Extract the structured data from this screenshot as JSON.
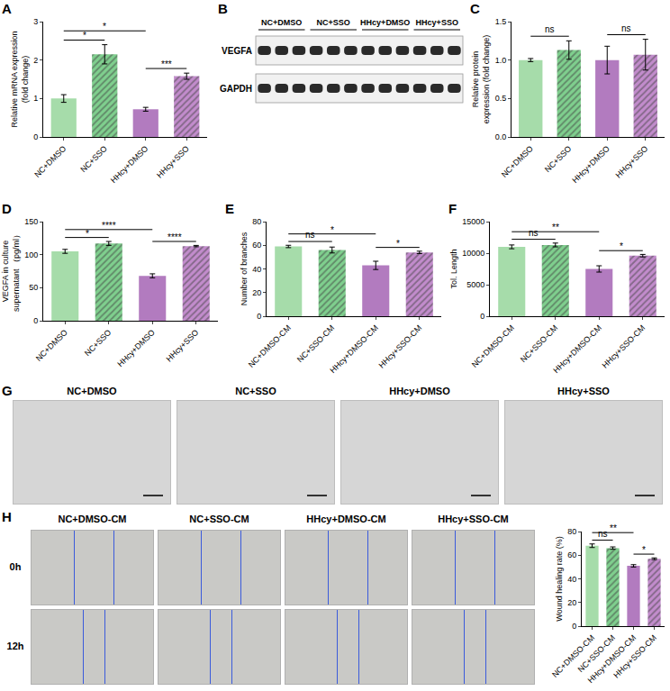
{
  "chart_data": [
    {
      "panel": "A",
      "type": "bar",
      "ylabel": "Relative mRNA expression (fold change)",
      "categories": [
        "NC+DMSO",
        "NC+SSO",
        "HHcy+DMSO",
        "HHcy+SSO"
      ],
      "values": [
        1.0,
        2.15,
        0.72,
        1.58
      ],
      "errors": [
        0.1,
        0.25,
        0.05,
        0.08
      ],
      "colors": [
        "#a6dcaa",
        "#7fcf8e",
        "#b27bbf",
        "#c28ccc"
      ],
      "ylim": [
        0,
        3
      ],
      "yticks": [
        0,
        1,
        2,
        3
      ],
      "comparisons": [
        {
          "from": 0,
          "to": 1,
          "label": "*"
        },
        {
          "from": 0,
          "to": 2,
          "label": "*"
        },
        {
          "from": 2,
          "to": 3,
          "label": "***"
        }
      ]
    },
    {
      "panel": "C",
      "type": "bar",
      "ylabel": "Relative protein expression (fold change)",
      "categories": [
        "NC+DMSO",
        "NC+SSO",
        "HHcy+DMSO",
        "HHcy+SSO"
      ],
      "values": [
        1.0,
        1.13,
        1.0,
        1.07
      ],
      "errors": [
        0.02,
        0.12,
        0.18,
        0.2
      ],
      "colors": [
        "#a6dcaa",
        "#7fcf8e",
        "#b27bbf",
        "#c28ccc"
      ],
      "ylim": [
        0,
        1.5
      ],
      "yticks": [
        {
          "value": 0,
          "label": "0.0"
        },
        0.5,
        {
          "value": 1,
          "label": "1.0"
        },
        1.5
      ],
      "comparisons": [
        {
          "from": 0,
          "to": 1,
          "label": "ns"
        },
        {
          "from": 2,
          "to": 3,
          "label": "ns"
        }
      ]
    },
    {
      "panel": "D",
      "type": "bar",
      "ylabel": "VEGFA in culture supernatant （pg/ml）",
      "categories": [
        "NC+DMSO",
        "NC+SSO",
        "HHcy+DMSO",
        "HHcy+SSO"
      ],
      "values": [
        105,
        117,
        68,
        113
      ],
      "errors": [
        3,
        3,
        3,
        1
      ],
      "colors": [
        "#a6dcaa",
        "#7fcf8e",
        "#b27bbf",
        "#c28ccc"
      ],
      "ylim": [
        0,
        150
      ],
      "yticks": [
        0,
        50,
        100,
        150
      ],
      "comparisons": [
        {
          "from": 0,
          "to": 1,
          "label": "*"
        },
        {
          "from": 0,
          "to": 2,
          "label": "****"
        },
        {
          "from": 2,
          "to": 3,
          "label": "****"
        }
      ]
    },
    {
      "panel": "E",
      "type": "bar",
      "ylabel": "Number of branches",
      "categories": [
        "NC+DMSO-CM",
        "NC+SSO-CM",
        "HHcy+DMSO-CM",
        "HHcy+SSO-CM"
      ],
      "values": [
        59,
        56,
        43,
        54
      ],
      "errors": [
        1,
        2.5,
        3.5,
        1
      ],
      "colors": [
        "#a6dcaa",
        "#7fcf8e",
        "#b27bbf",
        "#c28ccc"
      ],
      "ylim": [
        0,
        80
      ],
      "yticks": [
        0,
        20,
        40,
        60,
        80
      ],
      "comparisons": [
        {
          "from": 0,
          "to": 1,
          "label": "ns"
        },
        {
          "from": 0,
          "to": 2,
          "label": "*"
        },
        {
          "from": 2,
          "to": 3,
          "label": "*"
        }
      ]
    },
    {
      "panel": "F",
      "type": "bar",
      "ylabel": "Tol. Length",
      "categories": [
        "NC+DMSO-CM",
        "NC+SSO-CM",
        "HHcy+DMSO-CM",
        "HHcy+SSO-CM"
      ],
      "values": [
        11000,
        11300,
        7500,
        9600
      ],
      "errors": [
        300,
        300,
        500,
        200
      ],
      "colors": [
        "#a6dcaa",
        "#7fcf8e",
        "#b27bbf",
        "#c28ccc"
      ],
      "ylim": [
        0,
        15000
      ],
      "yticks": [
        0,
        5000,
        10000,
        15000
      ],
      "comparisons": [
        {
          "from": 0,
          "to": 1,
          "label": "ns"
        },
        {
          "from": 0,
          "to": 2,
          "label": "**"
        },
        {
          "from": 2,
          "to": 3,
          "label": "*"
        }
      ]
    },
    {
      "type": "bar",
      "ylabel": "Wound healing rate (%)",
      "categories": [
        "NC+DMSO-CM",
        "NC+SSO-CM",
        "HHcy+DMSO-CM",
        "HHcy+SSO-CM"
      ],
      "values": [
        68,
        66,
        51,
        57
      ],
      "errors": [
        1.5,
        1,
        1,
        0.7
      ],
      "colors": [
        "#a6dcaa",
        "#7fcf8e",
        "#b27bbf",
        "#c28ccc"
      ],
      "ylim": [
        0,
        80
      ],
      "yticks": [
        0,
        20,
        40,
        60,
        80
      ],
      "comparisons": [
        {
          "from": 0,
          "to": 1,
          "label": "ns"
        },
        {
          "from": 0,
          "to": 2,
          "label": "**"
        },
        {
          "from": 2,
          "to": 3,
          "label": "*"
        }
      ]
    }
  ],
  "blot": {
    "panel": "B",
    "groups": [
      "NC+DMSO",
      "NC+SSO",
      "HHcy+DMSO",
      "HHcy+SSO"
    ],
    "bands": [
      "VEGFA",
      "GAPDH"
    ]
  },
  "tube_images": {
    "panel": "G",
    "titles": [
      "NC+DMSO",
      "NC+SSO",
      "HHcy+DMSO",
      "HHcy+SSO"
    ]
  },
  "wound_images": {
    "panel": "H",
    "titles": [
      "NC+DMSO-CM",
      "NC+SSO-CM",
      "HHcy+DMSO-CM",
      "HHcy+SSO-CM"
    ],
    "times": [
      "0h",
      "12h"
    ]
  }
}
